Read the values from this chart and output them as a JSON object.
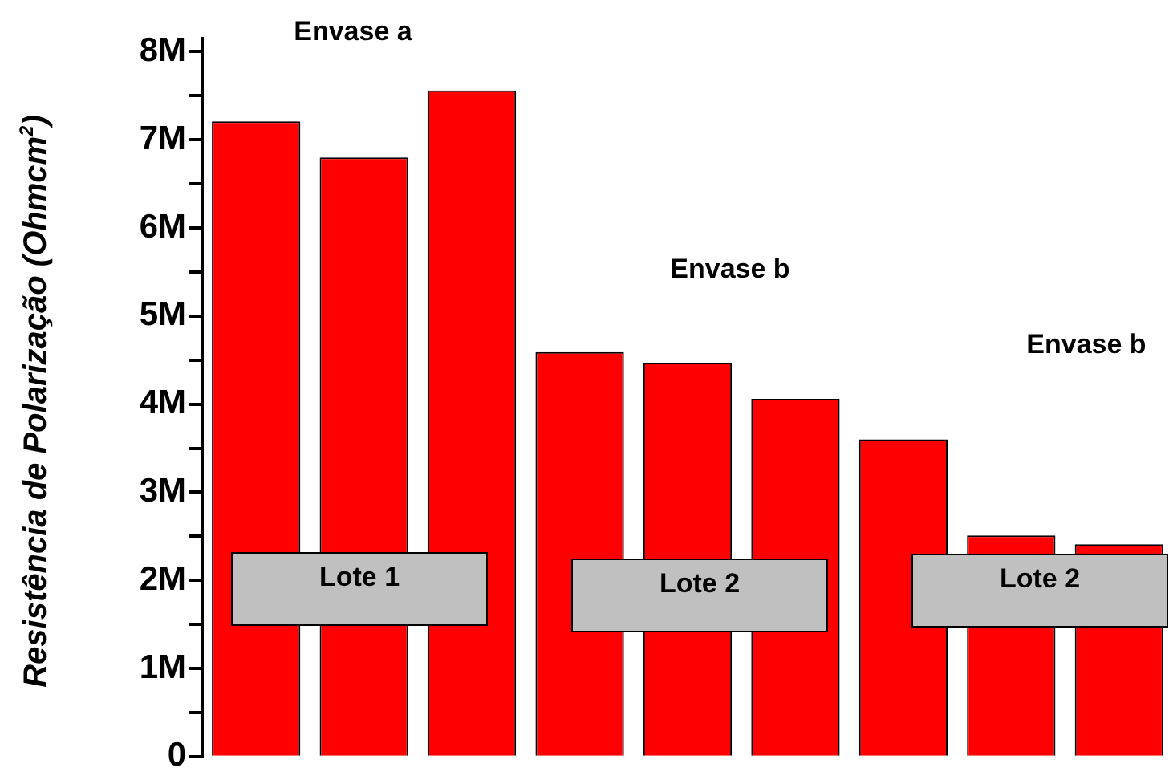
{
  "chart_data": {
    "type": "bar",
    "ylabel": "Resistência de Polarização (Ohmcm$^{2}$)",
    "categories": [
      null,
      null,
      null,
      null,
      null,
      null,
      null,
      null,
      null
    ],
    "values": [
      7210000,
      6800000,
      7560000,
      4590000,
      4470000,
      4060000,
      3600000,
      2510000,
      2410000
    ],
    "color": "#ff0000",
    "ylim": [
      0,
      8150000
    ],
    "yticks": [
      {
        "value": 0,
        "label": "0"
      },
      {
        "value": 500000,
        "label": null
      },
      {
        "value": 1000000,
        "label": "1M"
      },
      {
        "value": 1500000,
        "label": null
      },
      {
        "value": 2000000,
        "label": "2M"
      },
      {
        "value": 2500000,
        "label": null
      },
      {
        "value": 3000000,
        "label": "3M"
      },
      {
        "value": 3500000,
        "label": null
      },
      {
        "value": 4000000,
        "label": "4M"
      },
      {
        "value": 4500000,
        "label": null
      },
      {
        "value": 5000000,
        "label": "5M"
      },
      {
        "value": 5500000,
        "label": null
      },
      {
        "value": 6000000,
        "label": "6M"
      },
      {
        "value": 6500000,
        "label": null
      },
      {
        "value": 7000000,
        "label": "7M"
      },
      {
        "value": 7500000,
        "label": null
      },
      {
        "value": 8000000,
        "label": "8M"
      }
    ],
    "tick_labels": "y",
    "grid": false,
    "legend": false,
    "annotations": [
      "Envase a",
      "Envase b",
      "Envase b",
      "Lote 1",
      "Lote 2",
      "Lote 2"
    ]
  }
}
